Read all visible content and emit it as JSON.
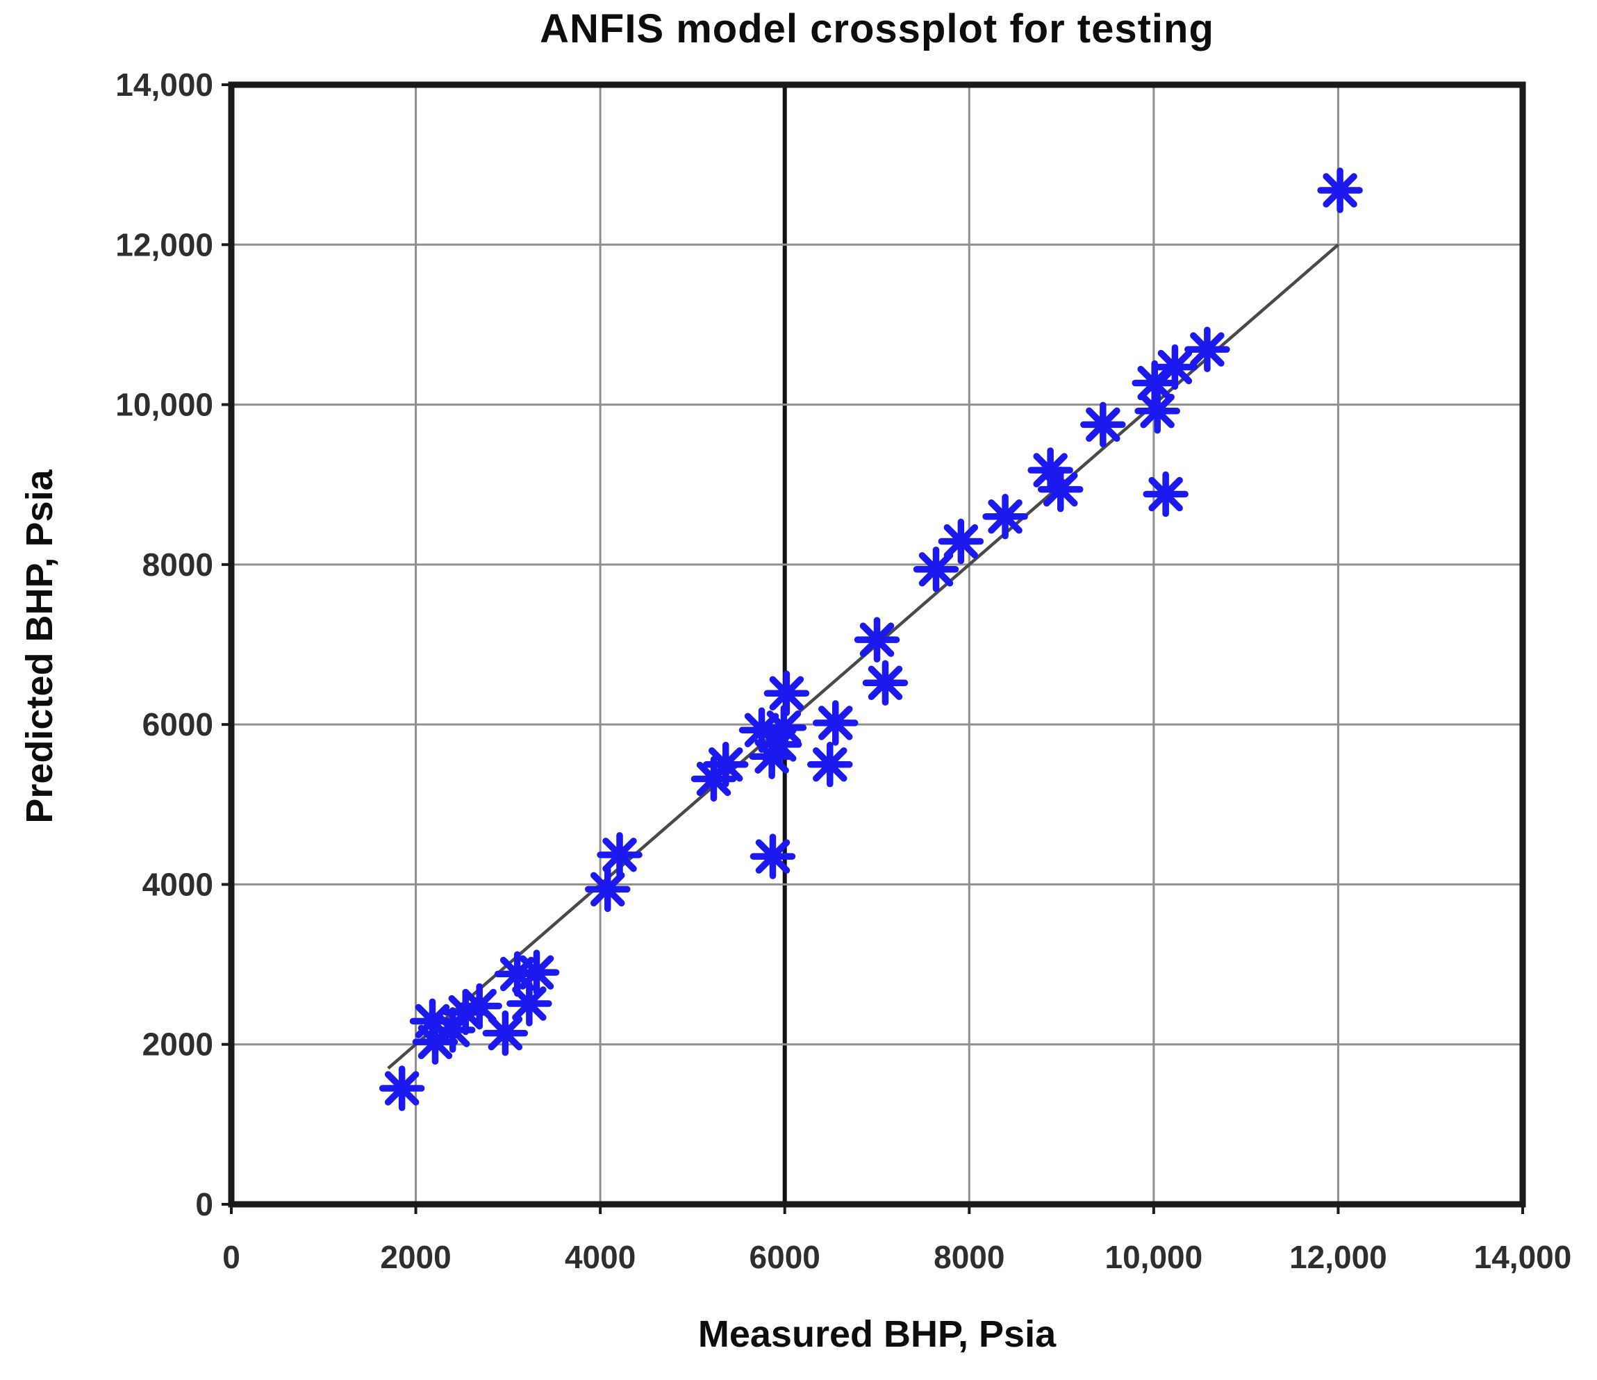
{
  "title": "ANFIS model crossplot for testing",
  "x_axis": {
    "label": "Measured BHP, Psia",
    "ticks": [
      {
        "value": 0,
        "label": "0"
      },
      {
        "value": 2000,
        "label": "2000"
      },
      {
        "value": 4000,
        "label": "4000"
      },
      {
        "value": 6000,
        "label": "6000"
      },
      {
        "value": 8000,
        "label": "8000"
      },
      {
        "value": 10000,
        "label": "10,000"
      },
      {
        "value": 12000,
        "label": "12,000"
      },
      {
        "value": 14000,
        "label": "14,000"
      }
    ]
  },
  "y_axis": {
    "label": "Predicted BHP, Psia",
    "ticks": [
      {
        "value": 0,
        "label": "0"
      },
      {
        "value": 2000,
        "label": "2000"
      },
      {
        "value": 4000,
        "label": "4000"
      },
      {
        "value": 6000,
        "label": "6000"
      },
      {
        "value": 8000,
        "label": "8000"
      },
      {
        "value": 10000,
        "label": "10,000"
      },
      {
        "value": 12000,
        "label": "12,000"
      },
      {
        "value": 14000,
        "label": "14,000"
      }
    ]
  },
  "colors": {
    "marker": "#1c19ee",
    "grid": "#8f8f8f",
    "frame": "#1a1a1a",
    "fit_line": "#4a4a4a",
    "highlight_vline": "#111111",
    "tick_text": "#2e2e2e",
    "background": "#ffffff"
  },
  "chart_data": {
    "type": "scatter",
    "title": "ANFIS model crossplot for testing",
    "xlabel": "Measured BHP, Psia",
    "ylabel": "Predicted BHP, Psia",
    "xlim": [
      0,
      14000
    ],
    "ylim": [
      0,
      14000
    ],
    "grid": true,
    "grid_interval": 2000,
    "legend": "none",
    "marker": "asterisk-8-spoke",
    "highlight_vline_x": 6000,
    "fit_line": {
      "x1": 1700,
      "y1": 1700,
      "x2": 12000,
      "y2": 12000
    },
    "points": [
      [
        1850,
        1450
      ],
      [
        2180,
        2290
      ],
      [
        2210,
        2030
      ],
      [
        2400,
        2180
      ],
      [
        2540,
        2400
      ],
      [
        2690,
        2480
      ],
      [
        2970,
        2140
      ],
      [
        3100,
        2880
      ],
      [
        3310,
        2900
      ],
      [
        3230,
        2510
      ],
      [
        4080,
        3940
      ],
      [
        4210,
        4370
      ],
      [
        5230,
        5320
      ],
      [
        5360,
        5500
      ],
      [
        5750,
        5930
      ],
      [
        5990,
        5960
      ],
      [
        5940,
        5750
      ],
      [
        5860,
        5600
      ],
      [
        6020,
        6390
      ],
      [
        5870,
        4350
      ],
      [
        6550,
        6020
      ],
      [
        6490,
        5500
      ],
      [
        7000,
        7060
      ],
      [
        7090,
        6520
      ],
      [
        7640,
        7940
      ],
      [
        7910,
        8290
      ],
      [
        8390,
        8600
      ],
      [
        8880,
        9180
      ],
      [
        8990,
        8940
      ],
      [
        9450,
        9750
      ],
      [
        10010,
        10270
      ],
      [
        10040,
        9920
      ],
      [
        10230,
        10470
      ],
      [
        10580,
        10690
      ],
      [
        10130,
        8880
      ],
      [
        12020,
        12680
      ]
    ]
  }
}
